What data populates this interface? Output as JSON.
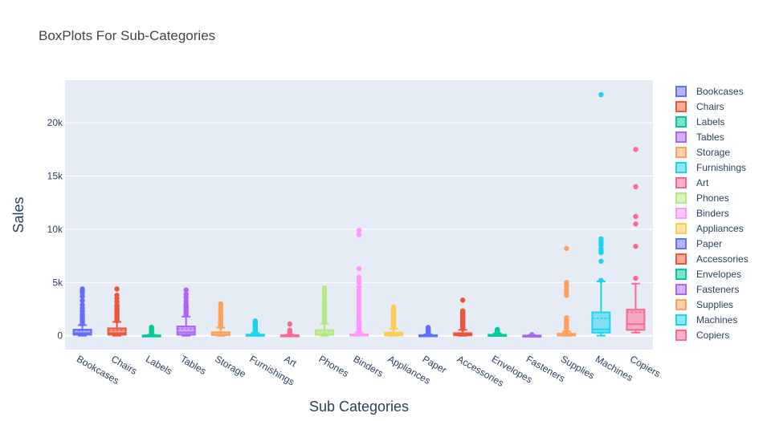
{
  "chart_data": {
    "type": "box",
    "title": "BoxPlots For Sub-Categories",
    "xlabel": "Sub Categories",
    "ylabel": "Sales",
    "ylim": [
      -1300,
      24000
    ],
    "yticks": [
      0,
      5000,
      10000,
      15000,
      20000
    ],
    "ytick_labels": [
      "0",
      "5k",
      "10k",
      "15k",
      "20k"
    ],
    "grid": true,
    "legend_position": "right",
    "categories": [
      "Bookcases",
      "Chairs",
      "Labels",
      "Tables",
      "Storage",
      "Furnishings",
      "Art",
      "Phones",
      "Binders",
      "Appliances",
      "Paper",
      "Accessories",
      "Envelopes",
      "Fasteners",
      "Supplies",
      "Machines",
      "Copiers"
    ],
    "series": [
      {
        "name": "Bookcases",
        "color": "#636efa",
        "q1": 100,
        "median": 240,
        "q3": 580,
        "mean": 500,
        "lower_fence": 5,
        "upper_fence": 1000,
        "outliers": [
          1100,
          1250,
          1400,
          1550,
          1700,
          1900,
          2100,
          2300,
          2600,
          2900,
          3300,
          3700,
          4000,
          4200,
          4400
        ]
      },
      {
        "name": "Chairs",
        "color": "#ef553b",
        "q1": 100,
        "median": 240,
        "q3": 700,
        "mean": 530,
        "lower_fence": 5,
        "upper_fence": 1300,
        "outliers": [
          1400,
          1550,
          1700,
          1850,
          2000,
          2150,
          2300,
          2450,
          2600,
          2750,
          2900,
          3200,
          3500,
          3800,
          4400
        ]
      },
      {
        "name": "Labels",
        "color": "#00cc96",
        "q1": 5,
        "median": 15,
        "q3": 40,
        "mean": 35,
        "lower_fence": 1,
        "upper_fence": 90,
        "outliers": [
          120,
          170,
          230,
          300,
          380,
          450,
          530,
          600,
          700,
          800
        ]
      },
      {
        "name": "Tables",
        "color": "#ab63fa",
        "q1": 100,
        "median": 320,
        "q3": 880,
        "mean": 650,
        "lower_fence": 5,
        "upper_fence": 1800,
        "outliers": [
          1950,
          2100,
          2250,
          2400,
          2550,
          2700,
          2850,
          3000,
          3300,
          3600,
          3900,
          4300
        ]
      },
      {
        "name": "Storage",
        "color": "#ffa15a",
        "q1": 50,
        "median": 110,
        "q3": 340,
        "mean": 260,
        "lower_fence": 5,
        "upper_fence": 770,
        "outliers": [
          850,
          950,
          1050,
          1150,
          1250,
          1400,
          1550,
          1700,
          1900,
          2100,
          2300,
          2600,
          2800,
          3000
        ]
      },
      {
        "name": "Furnishings",
        "color": "#19d3f3",
        "q1": 20,
        "median": 45,
        "q3": 110,
        "mean": 95,
        "lower_fence": 2,
        "upper_fence": 250,
        "outliers": [
          280,
          330,
          400,
          480,
          560,
          640,
          720,
          800,
          900,
          1000,
          1100,
          1200,
          1300,
          1400
        ]
      },
      {
        "name": "Art",
        "color": "#ff6692",
        "q1": 10,
        "median": 20,
        "q3": 50,
        "mean": 40,
        "lower_fence": 1,
        "upper_fence": 110,
        "outliers": [
          130,
          170,
          220,
          280,
          350,
          420,
          520,
          1100
        ]
      },
      {
        "name": "Phones",
        "color": "#b6e880",
        "q1": 80,
        "median": 180,
        "q3": 530,
        "mean": 380,
        "lower_fence": 1,
        "upper_fence": 1150,
        "outliers": [
          1250,
          1400,
          1550,
          1700,
          1850,
          2000,
          2150,
          2300,
          2450,
          2600,
          2750,
          2900,
          3100,
          3300,
          3600,
          3900,
          4200,
          4500
        ]
      },
      {
        "name": "Binders",
        "color": "#ff97ff",
        "q1": 20,
        "median": 50,
        "q3": 140,
        "mean": 130,
        "lower_fence": 1,
        "upper_fence": 320,
        "outliers": [
          400,
          500,
          600,
          700,
          800,
          900,
          1000,
          1100,
          1200,
          1350,
          1500,
          1650,
          1800,
          1950,
          2100,
          2300,
          2500,
          2700,
          2900,
          3100,
          3300,
          3500,
          3700,
          3900,
          4100,
          4300,
          4600,
          5000,
          5300,
          5500,
          6300,
          9500,
          9900
        ]
      },
      {
        "name": "Appliances",
        "color": "#fecb52",
        "q1": 35,
        "median": 90,
        "q3": 300,
        "mean": 230,
        "lower_fence": 1,
        "upper_fence": 650,
        "outliers": [
          750,
          850,
          950,
          1050,
          1150,
          1300,
          1450,
          1600,
          1750,
          1900,
          2050,
          2200,
          2350,
          2500,
          2700
        ]
      },
      {
        "name": "Paper",
        "color": "#636efa",
        "q1": 10,
        "median": 25,
        "q3": 60,
        "mean": 60,
        "lower_fence": 1,
        "upper_fence": 140,
        "outliers": [
          170,
          220,
          280,
          340,
          400,
          470,
          540,
          620,
          700,
          780
        ]
      },
      {
        "name": "Accessories",
        "color": "#ef553b",
        "q1": 40,
        "median": 100,
        "q3": 250,
        "mean": 215,
        "lower_fence": 1,
        "upper_fence": 560,
        "outliers": [
          640,
          740,
          840,
          940,
          1040,
          1140,
          1240,
          1340,
          1440,
          1540,
          1640,
          1740,
          1840,
          1940,
          2040,
          2140,
          2240,
          2340,
          3350
        ]
      },
      {
        "name": "Envelopes",
        "color": "#00cc96",
        "q1": 15,
        "median": 40,
        "q3": 100,
        "mean": 65,
        "lower_fence": 2,
        "upper_fence": 220,
        "outliers": [
          260,
          320,
          380,
          450,
          520,
          600
        ]
      },
      {
        "name": "Fasteners",
        "color": "#ab63fa",
        "q1": 5,
        "median": 10,
        "q3": 25,
        "mean": 14,
        "lower_fence": 1,
        "upper_fence": 55,
        "outliers": [
          65,
          80,
          95,
          110
        ]
      },
      {
        "name": "Supplies",
        "color": "#ffa15a",
        "q1": 25,
        "median": 60,
        "q3": 180,
        "mean": 250,
        "lower_fence": 1,
        "upper_fence": 400,
        "outliers": [
          460,
          540,
          620,
          700,
          800,
          900,
          1000,
          1150,
          1300,
          1500,
          1700,
          3800,
          4000,
          4300,
          4600,
          4800,
          5000,
          8200
        ]
      },
      {
        "name": "Machines",
        "color": "#19d3f3",
        "q1": 300,
        "median": 600,
        "q3": 2200,
        "mean": 1650,
        "lower_fence": 10,
        "upper_fence": 5100,
        "outliers": [
          5200,
          7000,
          7800,
          8000,
          8200,
          8500,
          8700,
          8900,
          9100,
          22650
        ]
      },
      {
        "name": "Copiers",
        "color": "#ff6692",
        "q1": 550,
        "median": 1100,
        "q3": 2450,
        "mean": 2200,
        "lower_fence": 300,
        "upper_fence": 4900,
        "outliers": [
          5400,
          8400,
          10500,
          11200,
          14000,
          17500
        ]
      }
    ]
  }
}
